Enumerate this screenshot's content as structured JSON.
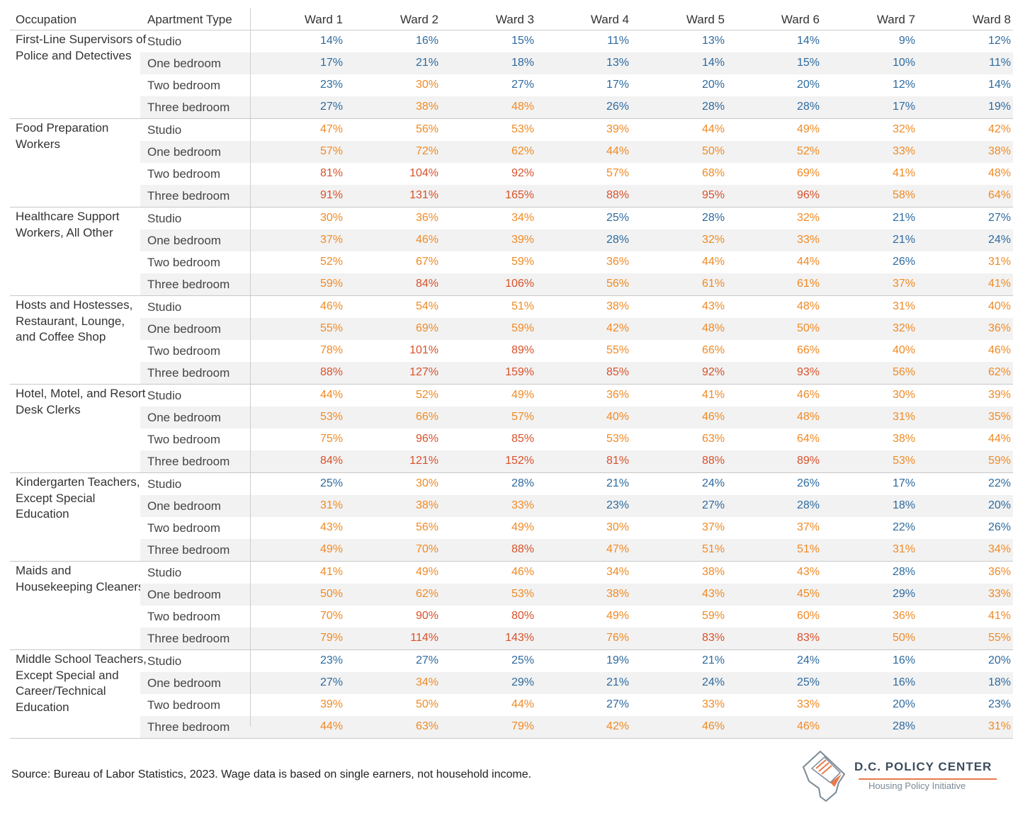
{
  "chart_data": {
    "type": "table",
    "headers": [
      "Occupation",
      "Apartment Type",
      "Ward 1",
      "Ward 2",
      "Ward 3",
      "Ward 4",
      "Ward 5",
      "Ward 6",
      "Ward 7",
      "Ward 8"
    ],
    "apartment_types": [
      "Studio",
      "One bedroom",
      "Two bedroom",
      "Three bedroom"
    ],
    "colors": {
      "low": "#2d6a9f",
      "mid": "#f08a24",
      "high": "#d8512a"
    },
    "groups": [
      {
        "occupation": "First-Line Supervisors of Police and Detectives",
        "rows": [
          [
            "14%",
            "16%",
            "15%",
            "11%",
            "13%",
            "14%",
            "9%",
            "12%"
          ],
          [
            "17%",
            "21%",
            "18%",
            "13%",
            "14%",
            "15%",
            "10%",
            "11%"
          ],
          [
            "23%",
            "30%",
            "27%",
            "17%",
            "20%",
            "20%",
            "12%",
            "14%"
          ],
          [
            "27%",
            "38%",
            "48%",
            "26%",
            "28%",
            "28%",
            "17%",
            "19%"
          ]
        ]
      },
      {
        "occupation": "Food Preparation Workers",
        "rows": [
          [
            "47%",
            "56%",
            "53%",
            "39%",
            "44%",
            "49%",
            "32%",
            "42%"
          ],
          [
            "57%",
            "72%",
            "62%",
            "44%",
            "50%",
            "52%",
            "33%",
            "38%"
          ],
          [
            "81%",
            "104%",
            "92%",
            "57%",
            "68%",
            "69%",
            "41%",
            "48%"
          ],
          [
            "91%",
            "131%",
            "165%",
            "88%",
            "95%",
            "96%",
            "58%",
            "64%"
          ]
        ]
      },
      {
        "occupation": "Healthcare Support Workers, All Other",
        "rows": [
          [
            "30%",
            "36%",
            "34%",
            "25%",
            "28%",
            "32%",
            "21%",
            "27%"
          ],
          [
            "37%",
            "46%",
            "39%",
            "28%",
            "32%",
            "33%",
            "21%",
            "24%"
          ],
          [
            "52%",
            "67%",
            "59%",
            "36%",
            "44%",
            "44%",
            "26%",
            "31%"
          ],
          [
            "59%",
            "84%",
            "106%",
            "56%",
            "61%",
            "61%",
            "37%",
            "41%"
          ]
        ]
      },
      {
        "occupation": "Hosts and Hostesses, Restaurant, Lounge, and Coffee Shop",
        "rows": [
          [
            "46%",
            "54%",
            "51%",
            "38%",
            "43%",
            "48%",
            "31%",
            "40%"
          ],
          [
            "55%",
            "69%",
            "59%",
            "42%",
            "48%",
            "50%",
            "32%",
            "36%"
          ],
          [
            "78%",
            "101%",
            "89%",
            "55%",
            "66%",
            "66%",
            "40%",
            "46%"
          ],
          [
            "88%",
            "127%",
            "159%",
            "85%",
            "92%",
            "93%",
            "56%",
            "62%"
          ]
        ]
      },
      {
        "occupation": "Hotel, Motel, and Resort Desk Clerks",
        "rows": [
          [
            "44%",
            "52%",
            "49%",
            "36%",
            "41%",
            "46%",
            "30%",
            "39%"
          ],
          [
            "53%",
            "66%",
            "57%",
            "40%",
            "46%",
            "48%",
            "31%",
            "35%"
          ],
          [
            "75%",
            "96%",
            "85%",
            "53%",
            "63%",
            "64%",
            "38%",
            "44%"
          ],
          [
            "84%",
            "121%",
            "152%",
            "81%",
            "88%",
            "89%",
            "53%",
            "59%"
          ]
        ]
      },
      {
        "occupation": "Kindergarten Teachers, Except Special Education",
        "rows": [
          [
            "25%",
            "30%",
            "28%",
            "21%",
            "24%",
            "26%",
            "17%",
            "22%"
          ],
          [
            "31%",
            "38%",
            "33%",
            "23%",
            "27%",
            "28%",
            "18%",
            "20%"
          ],
          [
            "43%",
            "56%",
            "49%",
            "30%",
            "37%",
            "37%",
            "22%",
            "26%"
          ],
          [
            "49%",
            "70%",
            "88%",
            "47%",
            "51%",
            "51%",
            "31%",
            "34%"
          ]
        ]
      },
      {
        "occupation": "Maids and Housekeeping Cleaners",
        "rows": [
          [
            "41%",
            "49%",
            "46%",
            "34%",
            "38%",
            "43%",
            "28%",
            "36%"
          ],
          [
            "50%",
            "62%",
            "53%",
            "38%",
            "43%",
            "45%",
            "29%",
            "33%"
          ],
          [
            "70%",
            "90%",
            "80%",
            "49%",
            "59%",
            "60%",
            "36%",
            "41%"
          ],
          [
            "79%",
            "114%",
            "143%",
            "76%",
            "83%",
            "83%",
            "50%",
            "55%"
          ]
        ]
      },
      {
        "occupation": "Middle School Teachers, Except Special and Career/Technical Education",
        "rows": [
          [
            "23%",
            "27%",
            "25%",
            "19%",
            "21%",
            "24%",
            "16%",
            "20%"
          ],
          [
            "27%",
            "34%",
            "29%",
            "21%",
            "24%",
            "25%",
            "16%",
            "18%"
          ],
          [
            "39%",
            "50%",
            "44%",
            "27%",
            "33%",
            "33%",
            "20%",
            "23%"
          ],
          [
            "44%",
            "63%",
            "79%",
            "42%",
            "46%",
            "46%",
            "28%",
            "31%"
          ]
        ]
      }
    ]
  },
  "footer": {
    "source": "Source: Bureau of Labor Statistics, 2023. Wage data is based on single earners, not household income."
  },
  "logo": {
    "brand": "D.C. POLICY CENTER",
    "subtitle": "Housing Policy Initiative",
    "icon": "dc-map-document-icon"
  }
}
